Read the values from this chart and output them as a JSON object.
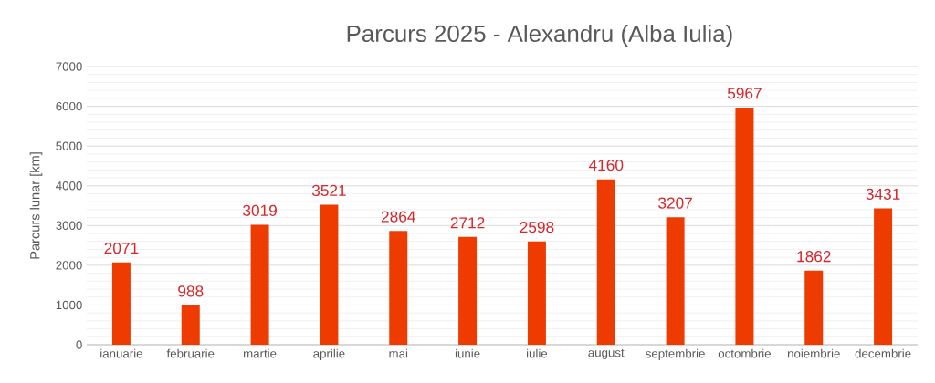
{
  "chart_data": {
    "type": "bar",
    "title": "Parcurs 2025 - Alexandru (Alba Iulia)",
    "ylabel": "Parcurs lunar [km]",
    "categories": [
      "ianuarie",
      "februarie",
      "martie",
      "aprilie",
      "mai",
      "iunie",
      "iulie",
      "august",
      "septembrie",
      "octombrie",
      "noiembrie",
      "decembrie"
    ],
    "values": [
      2071,
      988,
      3019,
      3521,
      2864,
      2712,
      2598,
      4160,
      3207,
      5967,
      1862,
      3431
    ],
    "color": "#ee3b00",
    "ylim": [
      0,
      7000
    ],
    "yticks": [
      0,
      1000,
      2000,
      3000,
      4000,
      5000,
      6000,
      7000
    ],
    "grid": "y",
    "data_labels": true
  }
}
